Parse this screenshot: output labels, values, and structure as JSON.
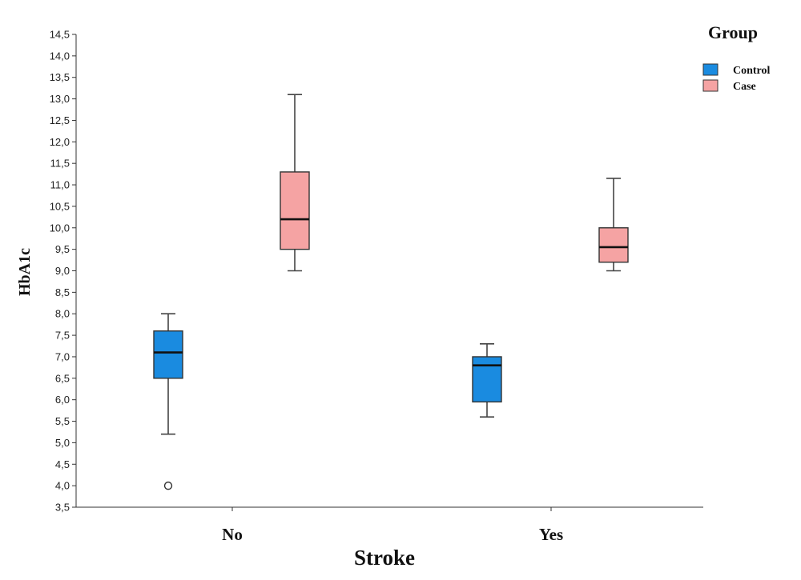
{
  "chart_data": {
    "type": "boxplot",
    "title": "",
    "xlabel": "Stroke",
    "ylabel": "HbA1c",
    "ylim": [
      3.5,
      14.5
    ],
    "y_ticks": [
      "3,5",
      "4,0",
      "4,5",
      "5,0",
      "5,5",
      "6,0",
      "6,5",
      "7,0",
      "7,5",
      "8,0",
      "8,5",
      "9,0",
      "9,5",
      "10,0",
      "10,5",
      "11,0",
      "11,5",
      "12,0",
      "12,5",
      "13,0",
      "13,5",
      "14,0",
      "14,5"
    ],
    "categories": [
      "No",
      "Yes"
    ],
    "legend": {
      "title": "Group",
      "position": "top-right",
      "entries": [
        {
          "label": "Control",
          "color": "#1a8be0"
        },
        {
          "label": "Case",
          "color": "#f5a3a3"
        }
      ]
    },
    "series": [
      {
        "name": "Control",
        "color": "#1a8be0",
        "boxes": [
          {
            "category": "No",
            "min": 5.2,
            "q1": 6.5,
            "median": 7.1,
            "q3": 7.6,
            "max": 8.0,
            "outliers": [
              4.0
            ]
          },
          {
            "category": "Yes",
            "min": 5.6,
            "q1": 5.95,
            "median": 6.8,
            "q3": 7.0,
            "max": 7.3,
            "outliers": []
          }
        ]
      },
      {
        "name": "Case",
        "color": "#f5a3a3",
        "boxes": [
          {
            "category": "No",
            "min": 9.0,
            "q1": 9.5,
            "median": 10.2,
            "q3": 11.3,
            "max": 13.1,
            "outliers": []
          },
          {
            "category": "Yes",
            "min": 9.0,
            "q1": 9.2,
            "median": 9.55,
            "q3": 10.0,
            "max": 11.15,
            "outliers": []
          }
        ]
      }
    ]
  }
}
